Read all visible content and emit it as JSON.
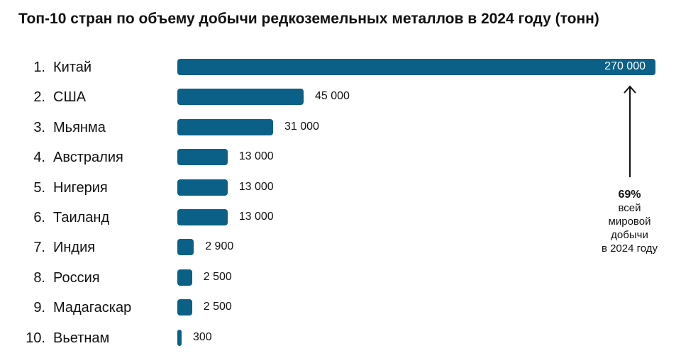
{
  "chart_data": {
    "type": "bar",
    "orientation": "horizontal",
    "title": "Топ-10 стран по объему добычи редкоземельных металлов в 2024 году (тонн)",
    "categories": [
      "Китай",
      "США",
      "Мьянма",
      "Австралия",
      "Нигерия",
      "Таиланд",
      "Индия",
      "Россия",
      "Мадагаскар",
      "Вьетнам"
    ],
    "ranks": [
      "1.",
      "2.",
      "3.",
      "4.",
      "5.",
      "6.",
      "7.",
      "8.",
      "9.",
      "10."
    ],
    "values": [
      270000,
      45000,
      31000,
      13000,
      13000,
      13000,
      2900,
      2500,
      2500,
      300
    ],
    "value_labels": [
      "270 000",
      "45 000",
      "31 000",
      "13 000",
      "13 000",
      "13 000",
      "2 900",
      "2 500",
      "2 500",
      "300"
    ],
    "bar_color": "#0b6088",
    "annotation": {
      "percent": "69%",
      "lines": [
        "всей",
        "мировой",
        "добычи",
        "в 2024 году"
      ]
    }
  }
}
